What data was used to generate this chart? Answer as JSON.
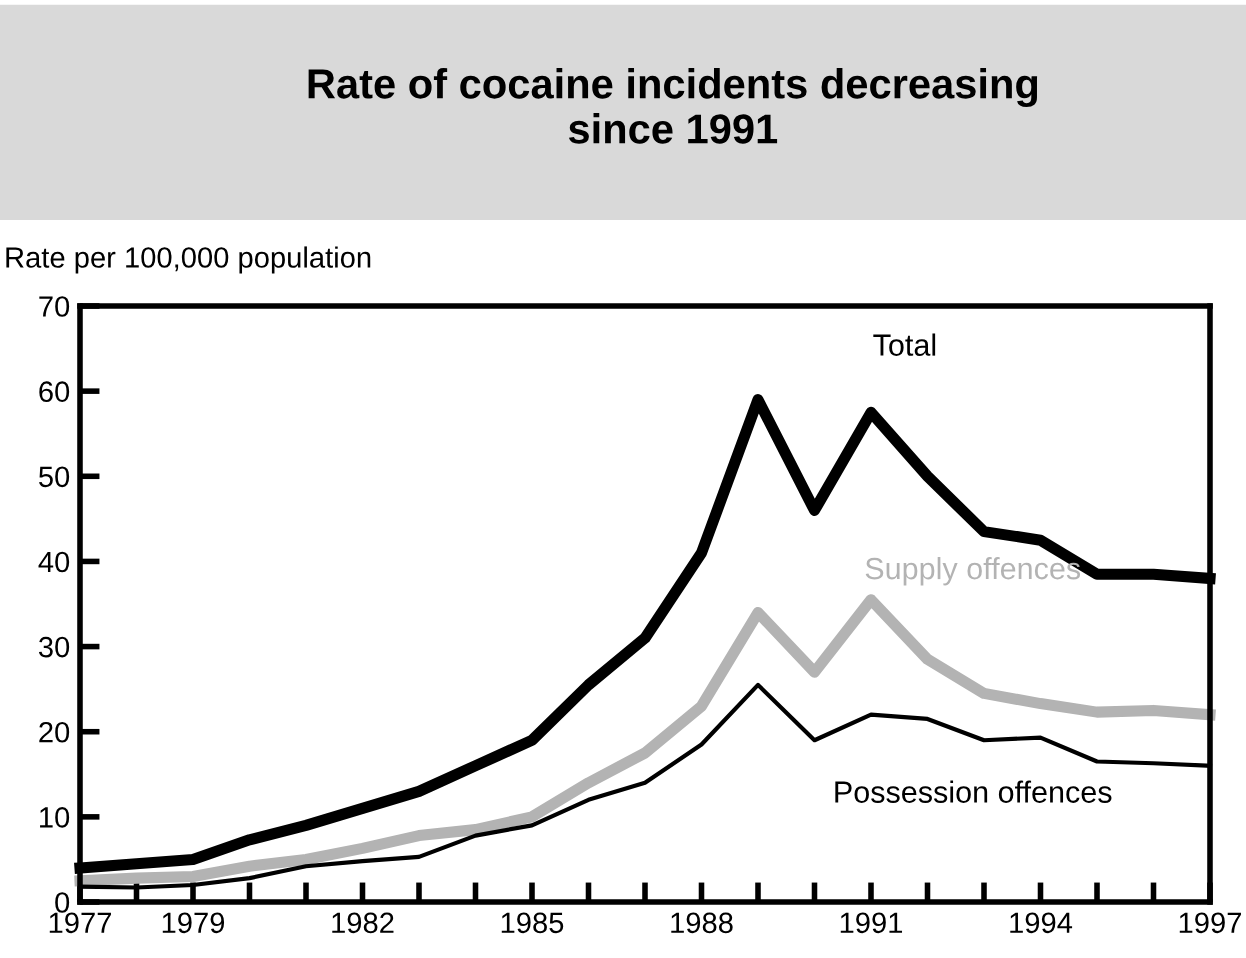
{
  "chart_data": {
    "type": "line",
    "title": "Rate of cocaine incidents decreasing\nsince 1991",
    "ylabel": "Rate per 100,000 population",
    "x": [
      1977,
      1978,
      1979,
      1980,
      1981,
      1982,
      1983,
      1984,
      1985,
      1986,
      1987,
      1988,
      1989,
      1990,
      1991,
      1992,
      1993,
      1994,
      1995,
      1996,
      1997
    ],
    "series": [
      {
        "name": "Total",
        "color": "#000000",
        "values": [
          4,
          4.5,
          5,
          7.3,
          9,
          11,
          13,
          16,
          19,
          25.5,
          31,
          41,
          59,
          46,
          57.5,
          50,
          43.5,
          42.5,
          38.5,
          38.5,
          38
        ]
      },
      {
        "name": "Supply offences",
        "color": "#b3b3b3",
        "values": [
          2.5,
          2.8,
          3,
          4.2,
          5,
          6.3,
          7.8,
          8.5,
          10,
          14,
          17.5,
          23,
          34,
          27,
          35.5,
          28.5,
          24.5,
          23.3,
          22.3,
          22.5,
          22
        ]
      },
      {
        "name": "Possession offences",
        "color": "#000000",
        "values": [
          1.8,
          1.7,
          2,
          2.8,
          4.2,
          4.8,
          5.3,
          7.8,
          9,
          12,
          14,
          18.5,
          25.5,
          19,
          22,
          21.5,
          19,
          19.3,
          16.5,
          16.3,
          16
        ]
      }
    ],
    "xlim": [
      1977,
      1997
    ],
    "ylim": [
      0,
      70
    ],
    "xticks": [
      1977,
      {
        "value": 1978,
        "label": null
      },
      1979,
      {
        "value": 1980,
        "label": null
      },
      {
        "value": 1981,
        "label": null
      },
      1982,
      {
        "value": 1983,
        "label": null
      },
      {
        "value": 1984,
        "label": null
      },
      1985,
      {
        "value": 1986,
        "label": null
      },
      {
        "value": 1987,
        "label": null
      },
      1988,
      {
        "value": 1989,
        "label": null
      },
      {
        "value": 1990,
        "label": null
      },
      1991,
      {
        "value": 1992,
        "label": null
      },
      {
        "value": 1993,
        "label": null
      },
      1994,
      {
        "value": 1995,
        "label": null
      },
      {
        "value": 1996,
        "label": null
      },
      1997
    ],
    "yticks": [
      0,
      10,
      20,
      30,
      40,
      50,
      60,
      70
    ],
    "grid": false,
    "legend": false,
    "marker": "none",
    "line_style": "solid"
  }
}
